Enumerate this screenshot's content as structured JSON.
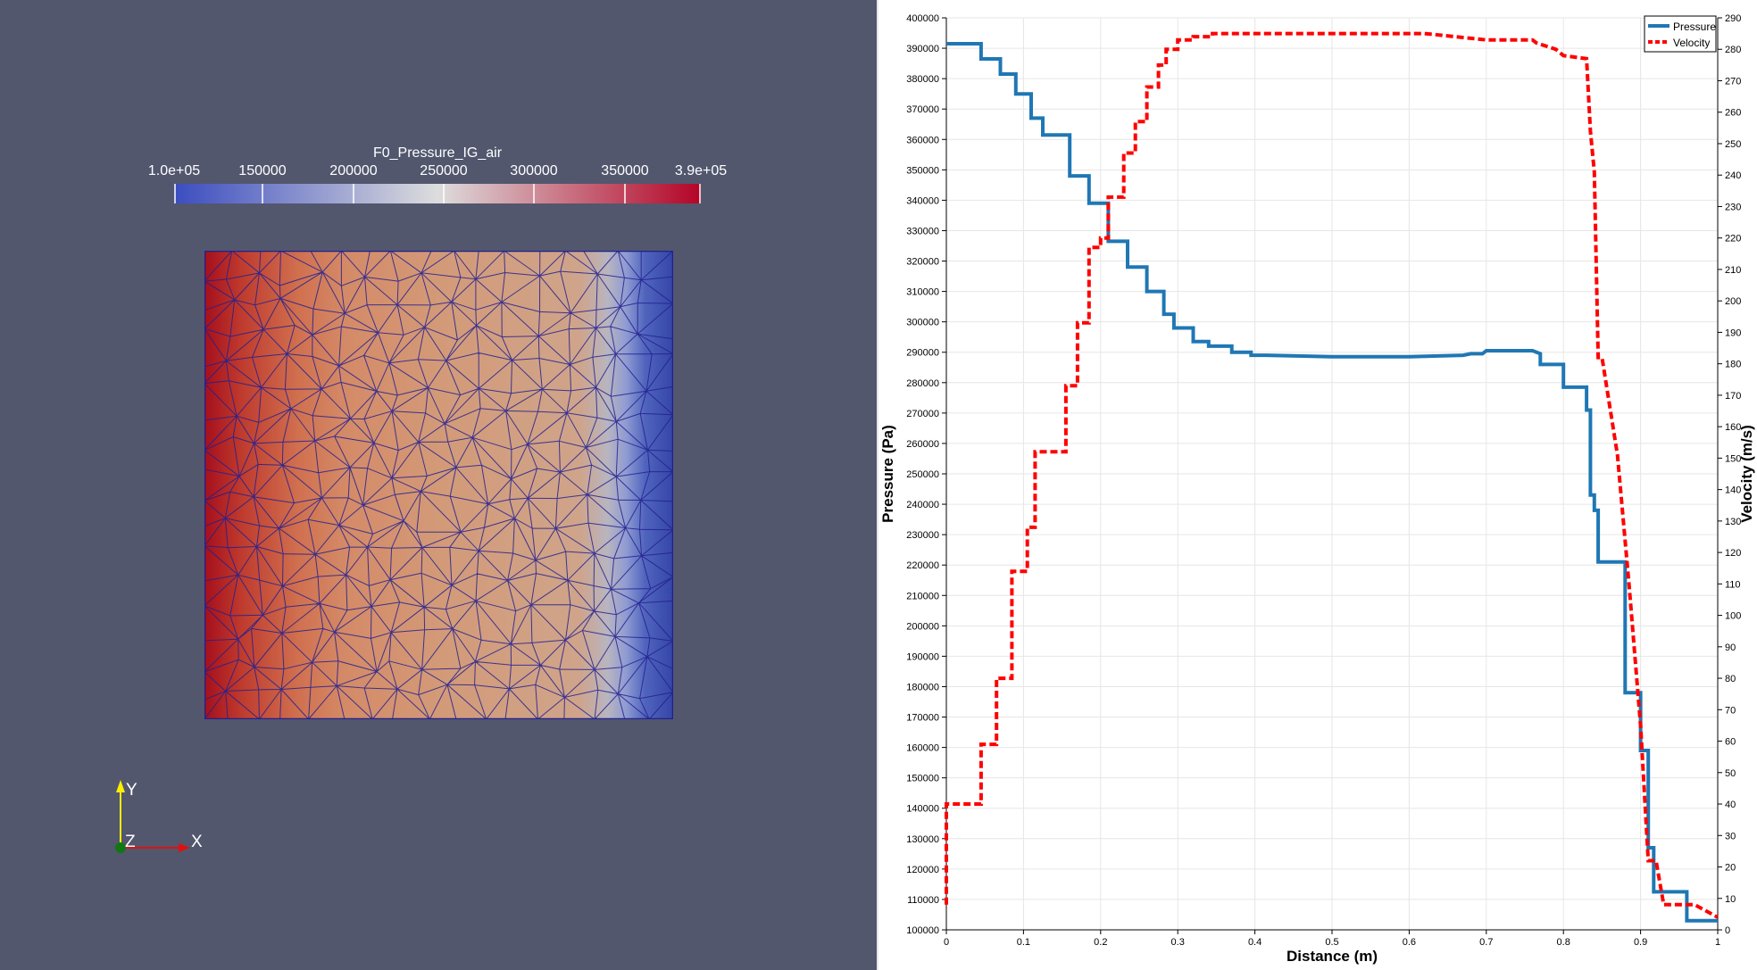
{
  "render_view": {
    "colorbar": {
      "title": "F0_Pressure_IG_air",
      "tick_labels": [
        "1.0e+05",
        "150000",
        "200000",
        "250000",
        "300000",
        "350000",
        "3.9e+05"
      ],
      "tick_values": [
        100000,
        150000,
        200000,
        250000,
        300000,
        350000,
        390000
      ],
      "range": [
        100000,
        390000
      ],
      "colors": [
        "#3b4cc0",
        "#dddddd",
        "#b40426"
      ]
    },
    "axes": {
      "x": "X",
      "y": "Y",
      "z": "Z"
    },
    "mesh_color": "#1a1a8c"
  },
  "chart_data": {
    "type": "line",
    "xlabel": "Distance (m)",
    "ylabel": "Pressure (Pa)",
    "y2label": "Velocity (m/s)",
    "xlim": [
      0,
      1
    ],
    "ylim": [
      100000,
      400000
    ],
    "y2lim": [
      0,
      290
    ],
    "x_ticks": [
      0,
      0.1,
      0.2,
      0.3,
      0.4,
      0.5,
      0.6,
      0.7,
      0.8,
      0.9,
      1
    ],
    "y_ticks": [
      100000,
      110000,
      120000,
      130000,
      140000,
      150000,
      160000,
      170000,
      180000,
      190000,
      200000,
      210000,
      220000,
      230000,
      240000,
      250000,
      260000,
      270000,
      280000,
      290000,
      300000,
      310000,
      320000,
      330000,
      340000,
      350000,
      360000,
      370000,
      380000,
      390000,
      400000
    ],
    "y2_ticks": [
      0,
      10,
      20,
      30,
      40,
      50,
      60,
      70,
      80,
      90,
      100,
      110,
      120,
      130,
      140,
      150,
      160,
      170,
      180,
      190,
      200,
      210,
      220,
      230,
      240,
      250,
      260,
      270,
      280,
      290
    ],
    "grid": true,
    "legend_position": "top-right",
    "series": [
      {
        "name": "Pressure",
        "axis": "left",
        "color": "#1f77b4",
        "dash": false,
        "x": [
          0,
          0.045,
          0.045,
          0.07,
          0.07,
          0.09,
          0.09,
          0.11,
          0.11,
          0.125,
          0.125,
          0.16,
          0.16,
          0.185,
          0.185,
          0.21,
          0.21,
          0.235,
          0.235,
          0.26,
          0.26,
          0.282,
          0.282,
          0.295,
          0.295,
          0.32,
          0.32,
          0.34,
          0.34,
          0.37,
          0.37,
          0.395,
          0.395,
          0.415,
          0.415,
          0.5,
          0.6,
          0.67,
          0.68,
          0.695,
          0.7,
          0.76,
          0.77,
          0.77,
          0.8,
          0.8,
          0.83,
          0.83,
          0.835,
          0.835,
          0.84,
          0.84,
          0.845,
          0.845,
          0.88,
          0.88,
          0.9,
          0.9,
          0.91,
          0.91,
          0.917,
          0.917,
          0.927,
          0.927,
          0.96,
          0.96,
          1
        ],
        "y": [
          391500,
          391500,
          386500,
          386500,
          381500,
          381500,
          375000,
          375000,
          367000,
          367000,
          361500,
          361500,
          348000,
          348000,
          339000,
          339000,
          326500,
          326500,
          318000,
          318000,
          310000,
          310000,
          302500,
          302500,
          298000,
          298000,
          293500,
          293500,
          292000,
          292000,
          290000,
          290000,
          289000,
          289000,
          289000,
          288500,
          288500,
          289000,
          289500,
          289500,
          290500,
          290500,
          289500,
          286000,
          286000,
          278500,
          278500,
          271000,
          271000,
          243000,
          243000,
          238000,
          238000,
          221000,
          221000,
          178000,
          178000,
          159000,
          159000,
          127000,
          127000,
          112500,
          112500,
          112500,
          112500,
          103000,
          103000
        ]
      },
      {
        "name": "Velocity",
        "axis": "right",
        "color": "#ff0000",
        "dash": true,
        "x": [
          0,
          0,
          0.005,
          0.005,
          0.045,
          0.045,
          0.065,
          0.065,
          0.085,
          0.085,
          0.105,
          0.105,
          0.115,
          0.115,
          0.125,
          0.125,
          0.155,
          0.155,
          0.17,
          0.17,
          0.185,
          0.185,
          0.2,
          0.2,
          0.21,
          0.21,
          0.23,
          0.23,
          0.245,
          0.245,
          0.26,
          0.26,
          0.275,
          0.275,
          0.285,
          0.285,
          0.3,
          0.3,
          0.32,
          0.32,
          0.345,
          0.345,
          0.37,
          0.37,
          0.4,
          0.43,
          0.5,
          0.55,
          0.58,
          0.62,
          0.66,
          0.7,
          0.76,
          0.765,
          0.765,
          0.79,
          0.79,
          0.8,
          0.8,
          0.83,
          0.83,
          0.835,
          0.835,
          0.84,
          0.84,
          0.845,
          0.845,
          0.85,
          0.85,
          0.87,
          0.87,
          0.885,
          0.885,
          0.9,
          0.9,
          0.91,
          0.91,
          0.92,
          0.92,
          0.93,
          0.93,
          0.96,
          0.96,
          0.97,
          0.97,
          1
        ],
        "y": [
          8,
          40,
          40,
          40,
          40,
          59,
          59,
          80,
          80,
          114,
          114,
          128,
          128,
          152,
          152,
          152,
          152,
          173,
          173,
          193,
          193,
          217,
          217,
          220,
          220,
          233,
          233,
          247,
          247,
          257,
          257,
          268,
          268,
          275,
          275,
          280,
          280,
          283,
          283,
          284,
          284,
          285,
          285,
          285,
          285,
          285,
          285,
          285,
          285,
          285,
          284,
          283,
          283,
          282,
          282,
          280,
          280,
          278,
          278,
          277,
          277,
          254,
          254,
          241,
          241,
          182,
          182,
          182,
          182,
          151,
          151,
          110,
          110,
          65,
          65,
          22,
          22,
          22,
          22,
          8,
          8,
          8,
          8,
          8,
          8,
          4
        ]
      }
    ]
  }
}
